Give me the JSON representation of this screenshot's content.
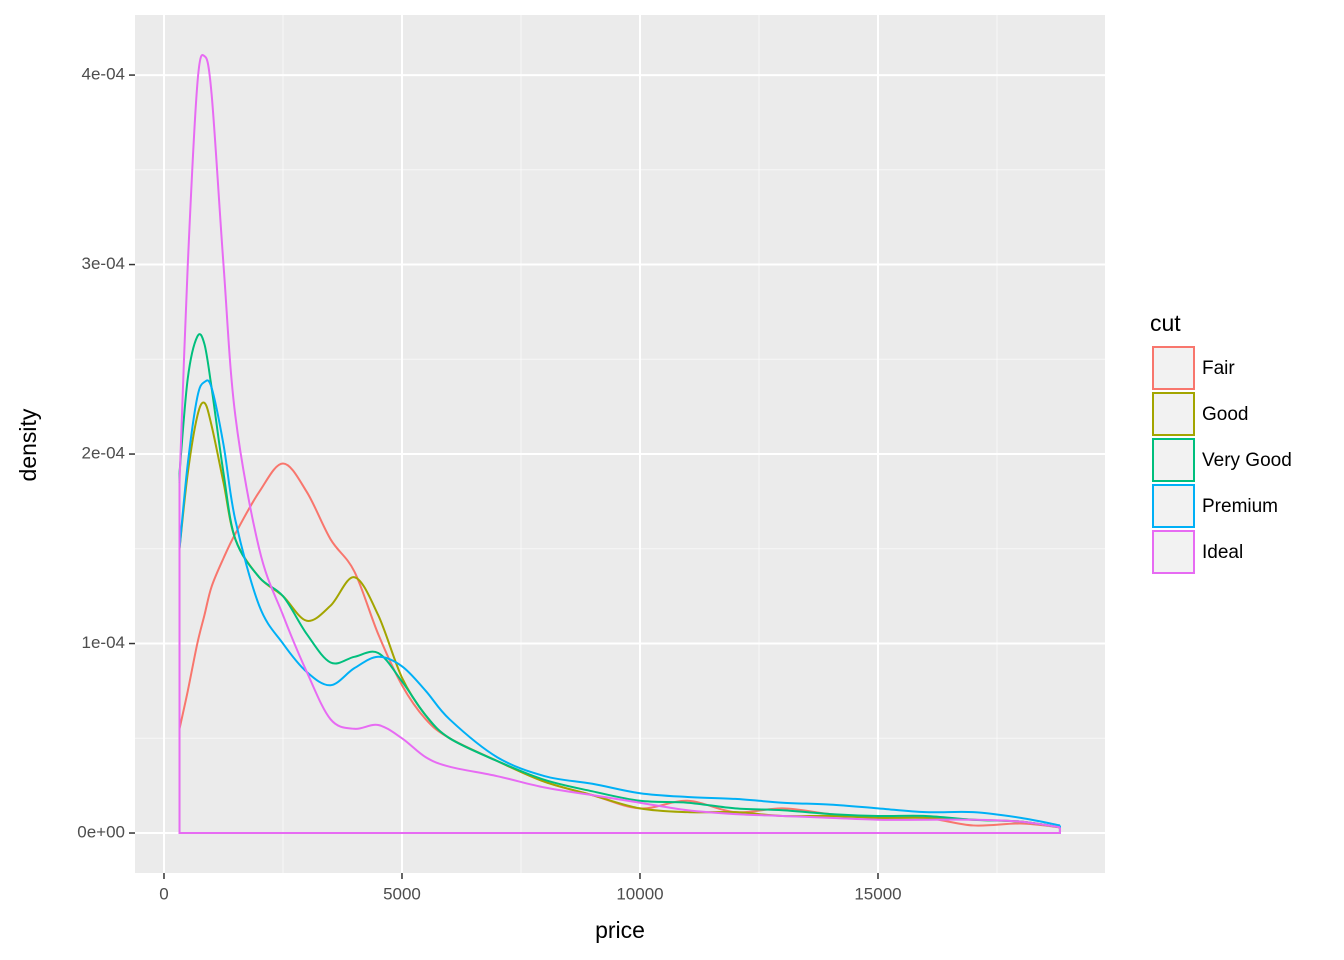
{
  "chart_data": {
    "type": "density",
    "xlabel": "price",
    "ylabel": "density",
    "legend_title": "cut",
    "legend": "right",
    "x": [
      326,
      500,
      700,
      850,
      1000,
      1250,
      1500,
      2000,
      2500,
      3000,
      3500,
      4000,
      4500,
      5000,
      5500,
      6000,
      7000,
      8000,
      9000,
      10000,
      11000,
      12000,
      13000,
      14000,
      15000,
      16000,
      17000,
      18000,
      18823
    ],
    "series": [
      {
        "name": "Fair",
        "color": "#F8766D",
        "values": [
          5.5e-05,
          7.5e-05,
          0.0001,
          0.000115,
          0.00013,
          0.000145,
          0.000158,
          0.00018,
          0.000195,
          0.00018,
          0.000155,
          0.000138,
          0.000105,
          7.8e-05,
          6e-05,
          5e-05,
          3.8e-05,
          2.7e-05,
          2e-05,
          1.3e-05,
          1.7e-05,
          1.1e-05,
          1.3e-05,
          1e-05,
          8e-06,
          8e-06,
          4e-06,
          5e-06,
          3e-06
        ]
      },
      {
        "name": "Good",
        "color": "#A3A500",
        "values": [
          0.00015,
          0.00019,
          0.00022,
          0.000227,
          0.000215,
          0.000185,
          0.000155,
          0.000135,
          0.000125,
          0.000112,
          0.00012,
          0.000135,
          0.000115,
          8.2e-05,
          6.2e-05,
          5e-05,
          3.8e-05,
          2.7e-05,
          2e-05,
          1.3e-05,
          1.1e-05,
          1.1e-05,
          9e-06,
          9e-06,
          8e-06,
          8e-06,
          7e-06,
          6e-06,
          3e-06
        ]
      },
      {
        "name": "Very Good",
        "color": "#00BF7D",
        "values": [
          0.00019,
          0.00024,
          0.000262,
          0.000258,
          0.000235,
          0.00019,
          0.000155,
          0.000135,
          0.000125,
          0.000105,
          9e-05,
          9.3e-05,
          9.5e-05,
          8e-05,
          6.2e-05,
          5e-05,
          3.8e-05,
          2.8e-05,
          2.2e-05,
          1.7e-05,
          1.6e-05,
          1.3e-05,
          1.2e-05,
          1e-05,
          9e-06,
          9e-06,
          7e-06,
          6e-06,
          3e-06
        ]
      },
      {
        "name": "Premium",
        "color": "#00B0F6",
        "values": [
          0.00015,
          0.000195,
          0.00023,
          0.000238,
          0.000235,
          0.000205,
          0.000165,
          0.00012,
          0.0001,
          8.5e-05,
          7.8e-05,
          8.7e-05,
          9.3e-05,
          8.8e-05,
          7.5e-05,
          6e-05,
          4e-05,
          3e-05,
          2.6e-05,
          2.1e-05,
          1.9e-05,
          1.8e-05,
          1.6e-05,
          1.5e-05,
          1.3e-05,
          1.1e-05,
          1.1e-05,
          8e-06,
          4e-06
        ]
      },
      {
        "name": "Ideal",
        "color": "#E76BF3",
        "values": [
          0.000185,
          0.0003,
          0.000395,
          0.00041,
          0.00039,
          0.0003,
          0.00022,
          0.00015,
          0.000115,
          8.5e-05,
          6e-05,
          5.5e-05,
          5.7e-05,
          5e-05,
          4e-05,
          3.5e-05,
          3e-05,
          2.4e-05,
          2e-05,
          1.6e-05,
          1.2e-05,
          1e-05,
          9e-06,
          8e-06,
          7e-06,
          7e-06,
          7e-06,
          6e-06,
          3e-06
        ]
      }
    ],
    "xlim": [
      -609,
      19769
    ],
    "xticks": [
      0,
      5000,
      10000,
      15000
    ],
    "xminor": [
      2500,
      7500,
      12500,
      17500
    ],
    "ylim": [
      -2.11e-05,
      0.0004317
    ],
    "yticks": [
      {
        "value": 0,
        "label": "0e+00"
      },
      {
        "value": 0.0001,
        "label": "1e-04"
      },
      {
        "value": 0.0002,
        "label": "2e-04"
      },
      {
        "value": 0.0003,
        "label": "3e-04"
      },
      {
        "value": 0.0004,
        "label": "4e-04"
      }
    ],
    "yminor": [
      5e-05,
      0.00015,
      0.00025,
      0.00035
    ],
    "grid": true
  }
}
